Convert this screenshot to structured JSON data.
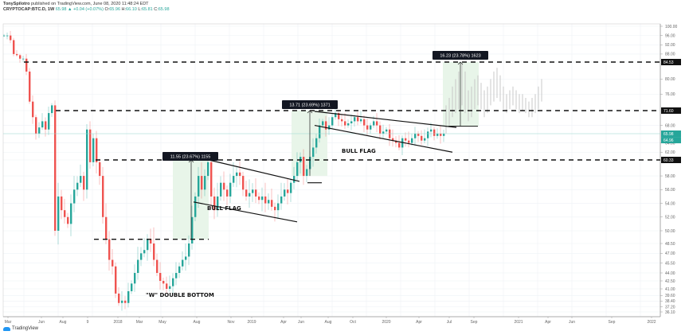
{
  "header": {
    "author": "TonySpilotro",
    "published_text": "published on TradingView.com, June 08, 2020 11:48:24 EDT",
    "symbol": "CRYPTOCAP:BTC.D, 1W",
    "last": "65.98",
    "change": "+0.04 (+0.07%)",
    "open_label": "O:",
    "open": "65.96",
    "high_label": "H:",
    "high": "66.10",
    "low_label": "L:",
    "low": "65.81",
    "close_label": "C:",
    "close": "65.98"
  },
  "footer": {
    "brand": "TradingView"
  },
  "colors": {
    "up": "#26a69a",
    "down": "#ef5350",
    "box": "#e8f5e9",
    "projection": "#c8c8c8",
    "price_tag": "#26a69a"
  },
  "chart_data": {
    "type": "candlestick",
    "title": "CRYPTOCAP:BTC.D, 1W — Bitcoin Dominance",
    "xlabel": "",
    "ylabel": "",
    "ylim": [
      35,
      100
    ],
    "grid": true,
    "y_ticks": [
      "100.00",
      "96.00",
      "92.00",
      "88.00",
      "84.53",
      "80.00",
      "76.00",
      "71.60",
      "68.00",
      "65.98",
      "64.00",
      "62.00",
      "60.33",
      "58.00",
      "56.00",
      "54.00",
      "52.00",
      "50.00",
      "48.50",
      "47.00",
      "45.50",
      "44.00",
      "42.50",
      "41.00",
      "39.60",
      "38.40",
      "37.20",
      "36.10"
    ],
    "x_ticks": [
      "Mar",
      "Jun",
      "Aug",
      "9",
      "2018",
      "Mar",
      "May",
      "Aug",
      "Nov",
      "2019",
      "Apr",
      "Jun",
      "Aug",
      "Oct",
      "2020",
      "Apr",
      "Jul",
      "Sep",
      "2021",
      "Apr",
      "Jun",
      "Sep",
      "2022"
    ],
    "horizontal_levels": [
      84.53,
      71.6,
      60.33,
      49.0
    ],
    "highlighted_levels": [
      "84.53",
      "71.60",
      "60.33"
    ],
    "current_price": "65.98",
    "current_price_2": "64.96",
    "measurements": [
      {
        "label": "11.55 (23.67%) 1155"
      },
      {
        "label": "13.71 (23.69%) 1371"
      },
      {
        "label": "16.23 (23.78%) 1623"
      }
    ],
    "annotations": [
      "\"W\" DOUBLE BOTTOM",
      "BULL FLAG",
      "BULL FLAG"
    ],
    "series_summary": "Weekly BTC dominance falls from ~96 (Mar 2017) to ~37 (Jan 2018), forms W double bottom (~37 Jan, ~40 Apr 2018), rallies to ~60 (Sep 2018), bull flag, rallies to ~71 (Jun 2019), second bull flag down to ~62, currently ~66 (Jun 2020); projected ghost bars to ~84.5 then consolidation 72-82 into 2021."
  }
}
